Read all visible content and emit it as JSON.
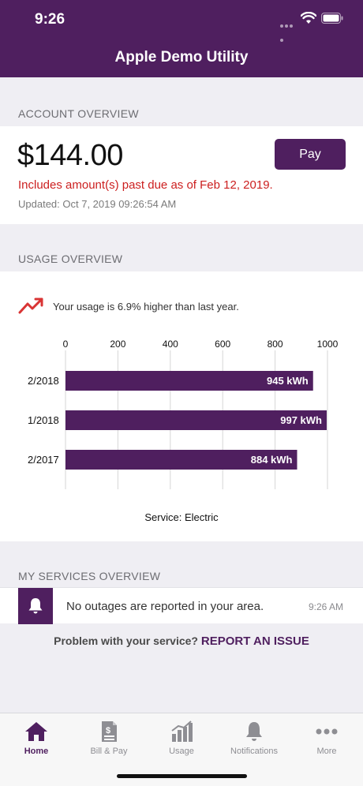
{
  "status_bar": {
    "time": "9:26"
  },
  "header": {
    "title": "Apple Demo Utility"
  },
  "account": {
    "section_label": "ACCOUNT OVERVIEW",
    "amount": "$144.00",
    "pay_label": "Pay",
    "past_due": "Includes amount(s) past due as of Feb 12, 2019.",
    "updated": "Updated: Oct 7, 2019 09:26:54 AM"
  },
  "usage": {
    "section_label": "USAGE OVERVIEW",
    "trend_text": "Your usage is 6.9% higher than last year.",
    "service_label": "Service: Electric"
  },
  "chart_data": {
    "type": "bar",
    "orientation": "horizontal",
    "categories": [
      "2/2018",
      "1/2018",
      "2/2017"
    ],
    "values": [
      945,
      997,
      884
    ],
    "value_labels": [
      "945 kWh",
      "997 kWh",
      "884 kWh"
    ],
    "xlim": [
      0,
      1000
    ],
    "ticks": [
      "0",
      "200",
      "400",
      "600",
      "800",
      "1000"
    ],
    "tick_values": [
      0,
      200,
      400,
      600,
      800,
      1000
    ],
    "grid": true,
    "bar_color": "#4f1f5f"
  },
  "services": {
    "section_label": "MY SERVICES OVERVIEW",
    "outage_text": "No outages are reported in your area.",
    "outage_time": "9:26 AM",
    "issue_prompt": "Problem with your service?",
    "issue_link": "REPORT AN ISSUE"
  },
  "tabs": [
    {
      "label": "Home",
      "icon": "home-icon",
      "active": true
    },
    {
      "label": "Bill & Pay",
      "icon": "bill-icon",
      "active": false
    },
    {
      "label": "Usage",
      "icon": "usage-chart-icon",
      "active": false
    },
    {
      "label": "Notifications",
      "icon": "bell-icon",
      "active": false
    },
    {
      "label": "More",
      "icon": "more-icon",
      "active": false
    }
  ],
  "colors": {
    "brand": "#4f1f5f",
    "alert": "#cc1f1f",
    "trend": "#d93434"
  }
}
